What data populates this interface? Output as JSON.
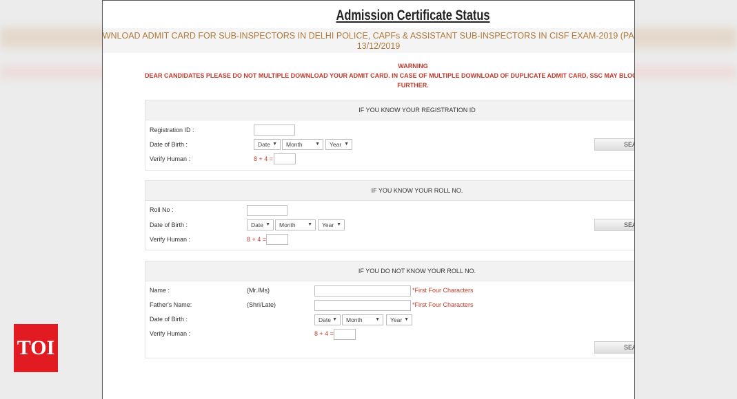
{
  "page": {
    "title": "Admission Certificate Status",
    "subtitle_line1": "DOWNLOAD ADMIT CARD FOR SUB-INSPECTORS IN DELHI POLICE, CAPFs & ASSISTANT SUB-INSPECTORS IN CISF EXAM-2019 (PAPER-I) T",
    "subtitle_line2": "13/12/2019",
    "warning_title": "WARNING",
    "warning_line1": "DEAR CANDIDATES PLEASE DO NOT MULTIPLE DOWNLOAD YOUR ADMIT CARD. IN CASE OF MULTIPLE DOWNLOAD OF DUPLICATE ADMIT CARD, SSC MAY BLOCK YOU FROM DOWNLOAD",
    "warning_line2": "FURTHER."
  },
  "colors": {
    "warning": "#c0392b",
    "subtitle": "#b07a3a",
    "toi_red": "#e21b22"
  },
  "sections": [
    {
      "header": "IF YOU KNOW YOUR REGISTRATION ID",
      "id_label": "Registration ID :",
      "dob_label": "Date of Birth :",
      "verify_label": "Verify Human :",
      "captcha": "8 + 4 =",
      "date": "Date",
      "month": "Month",
      "year": "Year",
      "button": "SEA"
    },
    {
      "header": "IF YOU KNOW YOUR ROLL NO.",
      "id_label": "Roll No :",
      "dob_label": "Date of Birth :",
      "verify_label": "Verify Human :",
      "captcha": "8 + 4 =",
      "date": "Date",
      "month": "Month",
      "year": "Year",
      "button": "SEA"
    },
    {
      "header": "IF YOU DO NOT KNOW YOUR ROLL NO.",
      "name_label": "Name :",
      "name_prefix": "(Mr./Ms)",
      "father_label": "Father's Name:",
      "father_prefix": "(Shri/Late)",
      "hint": "*First Four Characters",
      "dob_label": "Date of Birth :",
      "verify_label": "Verify Human :",
      "captcha": "8 + 4 =",
      "date": "Date",
      "month": "Month",
      "year": "Year",
      "button": "SEA"
    }
  ],
  "logo": {
    "text": "TOI"
  }
}
